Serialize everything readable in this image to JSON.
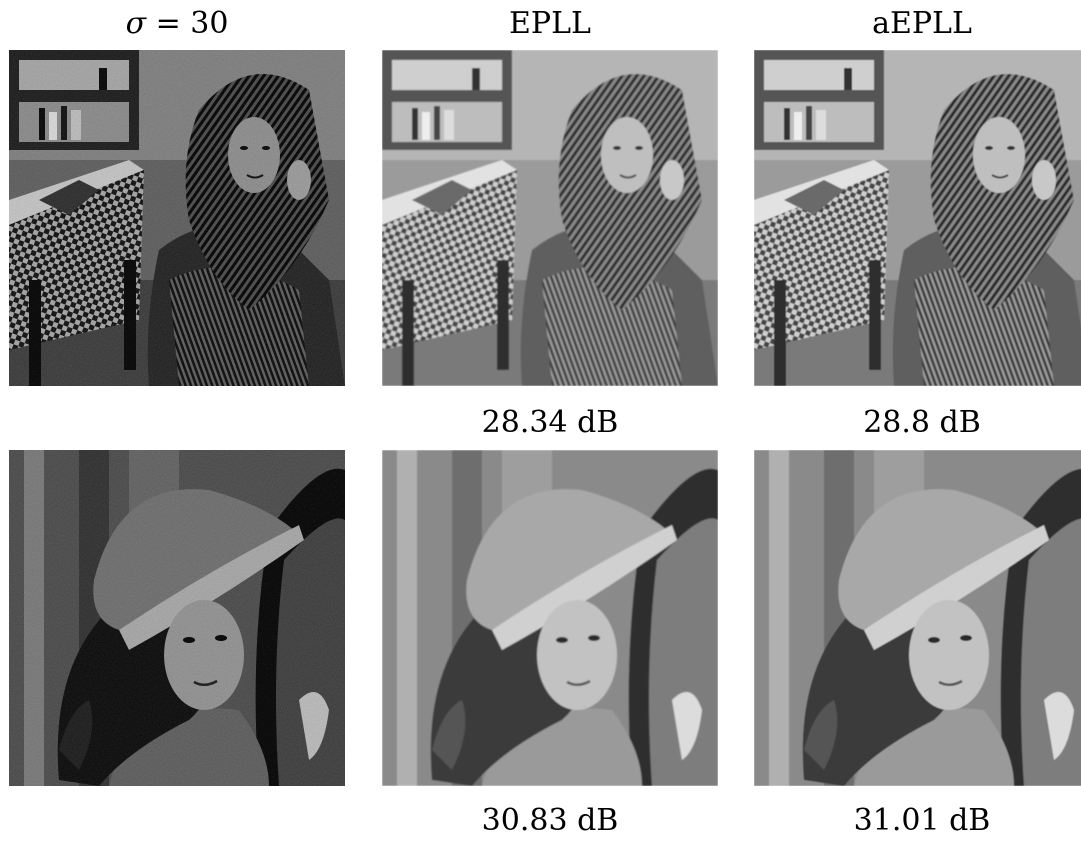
{
  "headers": {
    "noisy": {
      "symbol": "σ",
      "rest": " = 30"
    },
    "epll": "EPLL",
    "aepll": "aEPLL"
  },
  "rows": [
    {
      "subject": "barbara",
      "panels": [
        "noisy-input",
        "epll-output",
        "aepll-output"
      ],
      "psnr": {
        "epll": "28.34 dB",
        "aepll": "28.8 dB"
      }
    },
    {
      "subject": "lena",
      "panels": [
        "noisy-input",
        "epll-output",
        "aepll-output"
      ],
      "psnr": {
        "epll": "30.83 dB",
        "aepll": "31.01 dB"
      }
    }
  ]
}
